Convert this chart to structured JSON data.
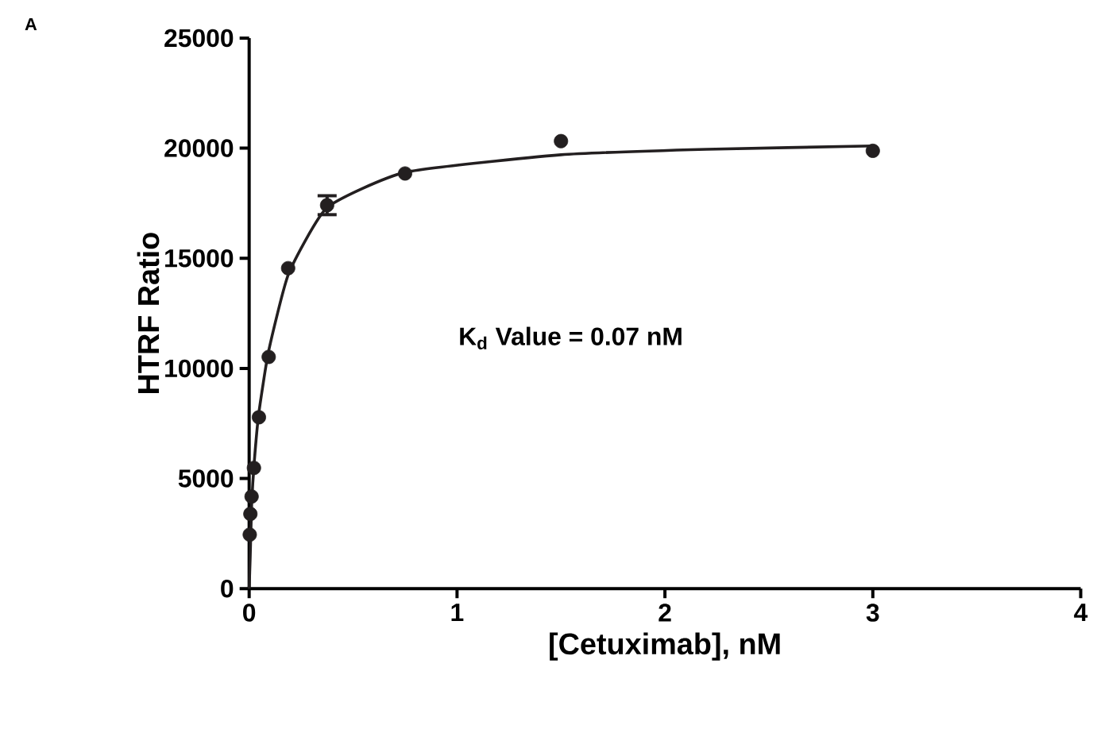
{
  "chart_data": {
    "type": "scatter",
    "title": "A",
    "xlabel": "[Cetuximab], nM",
    "ylabel": "HTRF Ratio",
    "annotations": [
      "K$_{d}$ Value = 0.07 nM"
    ],
    "xlim": [
      0,
      4
    ],
    "xticks": [
      0,
      1,
      2,
      3,
      4
    ],
    "ylim": [
      0,
      25000
    ],
    "yticks": [
      0,
      5000,
      10000,
      15000,
      20000,
      25000
    ],
    "grid": false,
    "series": [
      {
        "type": "scatter",
        "color": "#231f20",
        "marker": "circle",
        "x": [
          0.0029,
          0.0059,
          0.0117,
          0.023,
          0.047,
          0.094,
          0.1875,
          0.375,
          0.75,
          1.5,
          3
        ],
        "values": [
          2450,
          3390,
          4180,
          5480,
          7780,
          10520,
          14550,
          17410,
          18850,
          20320,
          19880
        ],
        "errors": [
          null,
          null,
          null,
          null,
          null,
          null,
          null,
          430,
          null,
          null,
          null
        ]
      },
      {
        "type": "line",
        "color": "#231f20",
        "marker": "none",
        "line_style": "solid",
        "x": [
          0,
          0.005,
          0.012,
          0.025,
          0.047,
          0.094,
          0.19,
          0.375,
          0.75,
          1.5,
          2.2,
          3
        ],
        "values": [
          0,
          1400,
          3800,
          5800,
          8000,
          10800,
          14300,
          17300,
          18900,
          19700,
          19950,
          20100
        ]
      }
    ]
  }
}
